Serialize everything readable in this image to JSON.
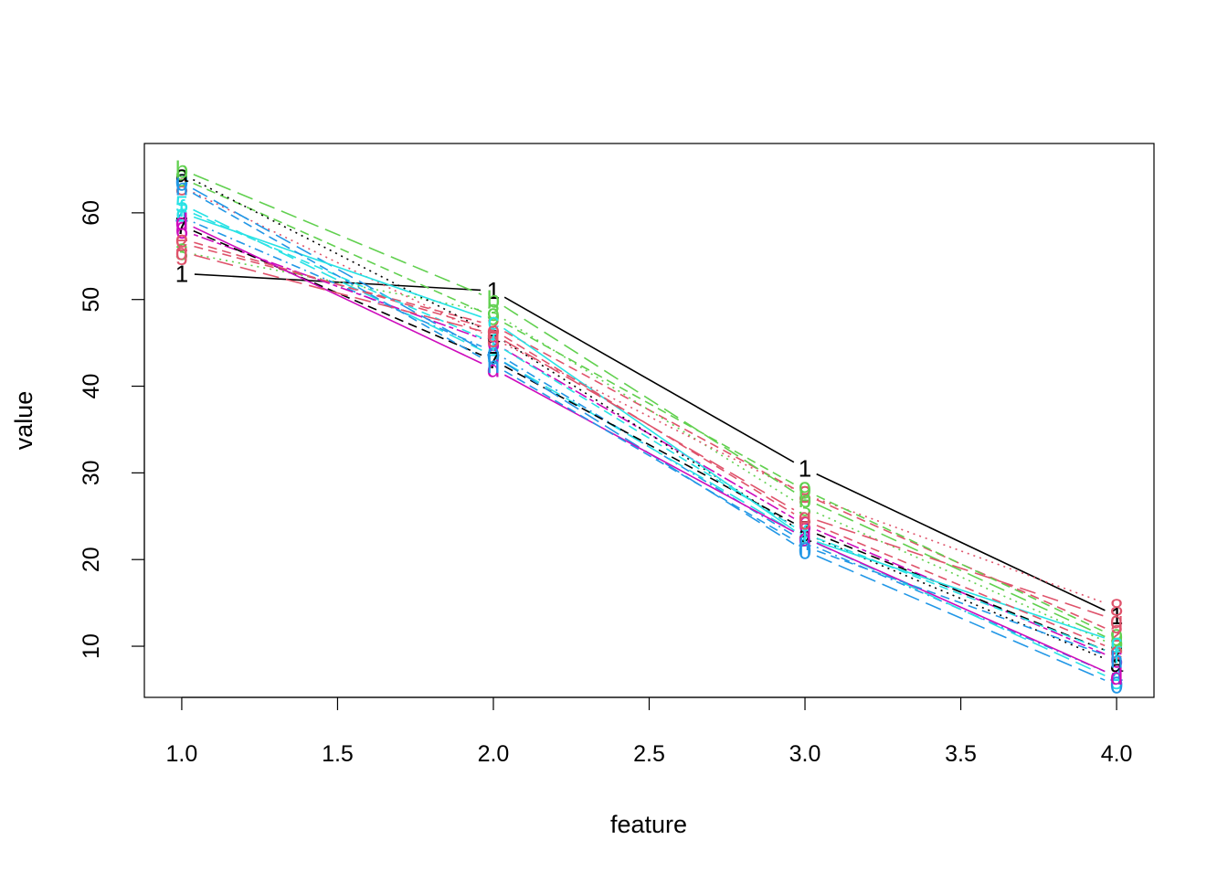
{
  "chart_data": {
    "type": "line",
    "xlabel": "feature",
    "ylabel": "value",
    "xlim": [
      0.88,
      4.12
    ],
    "ylim": [
      4.1,
      68
    ],
    "x": [
      1,
      2,
      3,
      4
    ],
    "x_ticks": [
      "1.0",
      "1.5",
      "2.0",
      "2.5",
      "3.0",
      "3.5",
      "4.0"
    ],
    "y_ticks": [
      "10",
      "20",
      "30",
      "40",
      "50",
      "60"
    ],
    "grid": false,
    "legend": "none",
    "series": [
      {
        "marker": "1",
        "color": "#000000",
        "dash": "solid",
        "values": [
          53.0,
          51.0,
          30.5,
          13.5
        ]
      },
      {
        "marker": "2",
        "color": "#DF536B",
        "dash": "dashed",
        "values": [
          56.5,
          47.0,
          27.5,
          11.5
        ]
      },
      {
        "marker": "3",
        "color": "#61D04F",
        "dash": "dotted",
        "values": [
          55.5,
          48.5,
          26.0,
          10.0
        ]
      },
      {
        "marker": "4",
        "color": "#2297E6",
        "dash": "dotdash",
        "values": [
          59.5,
          44.0,
          22.0,
          6.5
        ]
      },
      {
        "marker": "5",
        "color": "#28E2E5",
        "dash": "longdash",
        "values": [
          61.0,
          43.5,
          22.5,
          6.0
        ]
      },
      {
        "marker": "6",
        "color": "#CD0BBC",
        "dash": "twodash",
        "values": [
          58.0,
          45.0,
          24.0,
          8.5
        ]
      },
      {
        "marker": "7",
        "color": "#000000",
        "dash": "dashed",
        "values": [
          58.5,
          43.0,
          23.5,
          9.0
        ]
      },
      {
        "marker": "8",
        "color": "#DF536B",
        "dash": "dotted",
        "values": [
          63.0,
          45.5,
          27.5,
          14.5
        ]
      },
      {
        "marker": "9",
        "color": "#61D04F",
        "dash": "dashed",
        "values": [
          64.0,
          48.0,
          28.0,
          11.0
        ]
      },
      {
        "marker": "0",
        "color": "#2297E6",
        "dash": "longdash",
        "values": [
          63.5,
          43.5,
          21.0,
          5.5
        ]
      },
      {
        "marker": "a",
        "color": "#000000",
        "dash": "dotted",
        "values": [
          64.5,
          46.0,
          23.0,
          8.0
        ]
      },
      {
        "marker": "b",
        "color": "#61D04F",
        "dash": "longdash",
        "values": [
          65.0,
          50.0,
          27.0,
          10.5
        ]
      },
      {
        "marker": "c",
        "color": "#28E2E5",
        "dash": "solid",
        "values": [
          60.0,
          47.5,
          22.5,
          10.5
        ]
      },
      {
        "marker": "d",
        "color": "#CD0BBC",
        "dash": "solid",
        "values": [
          59.0,
          42.0,
          22.5,
          6.5
        ]
      },
      {
        "marker": "e",
        "color": "#DF536B",
        "dash": "dashed",
        "values": [
          57.0,
          46.5,
          24.5,
          9.5
        ]
      },
      {
        "marker": "f",
        "color": "#28E2E5",
        "dash": "dashed",
        "values": [
          60.5,
          45.0,
          23.0,
          9.0
        ]
      },
      {
        "marker": "g",
        "color": "#DF536B",
        "dash": "longdash",
        "values": [
          55.5,
          46.0,
          25.0,
          13.0
        ]
      },
      {
        "marker": "h",
        "color": "#2297E6",
        "dash": "dashed",
        "values": [
          63.0,
          42.5,
          21.5,
          8.5
        ]
      }
    ]
  }
}
